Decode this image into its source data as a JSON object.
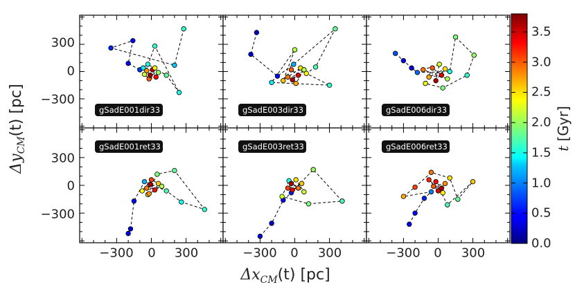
{
  "chart_data": {
    "type": "scatter",
    "xlabel_math": "Δx",
    "xlabel_sub": "CM",
    "xlabel_rest": "(t) [pc]",
    "ylabel_math": "Δy",
    "ylabel_sub": "CM",
    "ylabel_rest": "(t) [pc]",
    "xlim": [
      -620,
      620
    ],
    "ylim": [
      -620,
      620
    ],
    "x_ticks": [
      -300,
      0,
      300
    ],
    "x_tick_labels": [
      "−300",
      "0",
      "300"
    ],
    "y_ticks": [
      300,
      0,
      -300
    ],
    "y_tick_labels": [
      "300",
      "0",
      "−300"
    ],
    "colorbar": {
      "label_math": "t",
      "label_rest": " [Gyr]",
      "range": [
        0.0,
        3.8
      ],
      "ticks": [
        0.0,
        0.5,
        1.0,
        1.5,
        2.0,
        2.5,
        3.0,
        3.5
      ],
      "tick_labels": [
        "0.0",
        "0.5",
        "1.0",
        "1.5",
        "2.0",
        "2.5",
        "3.0",
        "3.5"
      ]
    },
    "panels": [
      {
        "label": "gSadE001dir33",
        "points": [
          [
            280,
            470,
            1.6
          ],
          [
            200,
            70,
            1.3
          ],
          [
            -350,
            260,
            0.6
          ],
          [
            -160,
            340,
            0.5
          ],
          [
            -200,
            90,
            0.4
          ],
          [
            -100,
            20,
            0.7
          ],
          [
            -30,
            80,
            1.5
          ],
          [
            130,
            -40,
            1.8
          ],
          [
            240,
            -230,
            1.5
          ],
          [
            30,
            280,
            1.6
          ],
          [
            -60,
            -30,
            2.2
          ],
          [
            -20,
            -80,
            3.0
          ],
          [
            40,
            -60,
            3.3
          ],
          [
            10,
            20,
            3.5
          ],
          [
            -40,
            10,
            2.8
          ],
          [
            30,
            40,
            2.4
          ],
          [
            60,
            -10,
            2.0
          ],
          [
            -10,
            -40,
            3.7
          ],
          [
            -70,
            40,
            1.4
          ]
        ]
      },
      {
        "label": "gSadE003dir33",
        "points": [
          [
            -330,
            430,
            0.3
          ],
          [
            -380,
            190,
            0.3
          ],
          [
            -150,
            -50,
            0.5
          ],
          [
            -10,
            80,
            1.2
          ],
          [
            350,
            470,
            1.8
          ],
          [
            180,
            50,
            1.7
          ],
          [
            100,
            -20,
            2.4
          ],
          [
            300,
            -150,
            1.6
          ],
          [
            -200,
            -120,
            1.4
          ],
          [
            0,
            240,
            2.1
          ],
          [
            -100,
            -100,
            2.6
          ],
          [
            -30,
            20,
            3.0
          ],
          [
            30,
            -40,
            3.4
          ],
          [
            -60,
            -60,
            2.9
          ],
          [
            50,
            40,
            2.5
          ],
          [
            -20,
            -90,
            3.6
          ],
          [
            80,
            20,
            2.1
          ],
          [
            10,
            -130,
            2.7
          ]
        ]
      },
      {
        "label": "gSadE006dir33",
        "points": [
          [
            -370,
            200,
            0.8
          ],
          [
            -300,
            120,
            0.5
          ],
          [
            -230,
            40,
            0.4
          ],
          [
            -180,
            -10,
            0.9
          ],
          [
            100,
            0,
            1.5
          ],
          [
            150,
            380,
            1.9
          ],
          [
            310,
            180,
            2.0
          ],
          [
            250,
            -40,
            1.6
          ],
          [
            40,
            -180,
            1.9
          ],
          [
            -110,
            -130,
            2.3
          ],
          [
            -50,
            40,
            3.0
          ],
          [
            30,
            -40,
            3.4
          ],
          [
            -80,
            -60,
            2.7
          ],
          [
            60,
            30,
            2.5
          ],
          [
            -20,
            -100,
            3.6
          ],
          [
            10,
            80,
            2.2
          ],
          [
            -130,
            20,
            2.9
          ],
          [
            80,
            -80,
            2.1
          ]
        ]
      },
      {
        "label": "gSadE001ret33",
        "points": [
          [
            -200,
            -520,
            0.4
          ],
          [
            -180,
            -470,
            0.3
          ],
          [
            -150,
            -170,
            0.5
          ],
          [
            -60,
            40,
            1.2
          ],
          [
            130,
            -60,
            1.7
          ],
          [
            260,
            -180,
            1.5
          ],
          [
            460,
            -260,
            1.6
          ],
          [
            200,
            160,
            1.8
          ],
          [
            50,
            120,
            1.9
          ],
          [
            -30,
            -100,
            2.2
          ],
          [
            30,
            -50,
            3.3
          ],
          [
            -10,
            10,
            3.6
          ],
          [
            -40,
            -30,
            2.9
          ],
          [
            60,
            20,
            2.6
          ],
          [
            0,
            60,
            3.1
          ],
          [
            -80,
            -60,
            2.4
          ],
          [
            90,
            -10,
            2.1
          ],
          [
            -20,
            -90,
            2.8
          ]
        ]
      },
      {
        "label": "gSadE003ret33",
        "points": [
          [
            -300,
            -550,
            0.4
          ],
          [
            -200,
            -410,
            0.3
          ],
          [
            -100,
            -160,
            0.5
          ],
          [
            -30,
            -80,
            0.6
          ],
          [
            160,
            170,
            2.0
          ],
          [
            410,
            -170,
            1.7
          ],
          [
            120,
            -200,
            1.9
          ],
          [
            -110,
            -120,
            2.2
          ],
          [
            -50,
            50,
            1.5
          ],
          [
            30,
            -30,
            2.9
          ],
          [
            -20,
            -50,
            3.4
          ],
          [
            60,
            20,
            2.6
          ],
          [
            -60,
            -30,
            3.1
          ],
          [
            10,
            60,
            2.5
          ],
          [
            80,
            -70,
            2.2
          ],
          [
            -30,
            20,
            3.6
          ]
        ]
      },
      {
        "label": "gSadE006ret33",
        "points": [
          [
            -250,
            -420,
            0.4
          ],
          [
            -200,
            -300,
            0.5
          ],
          [
            -120,
            -140,
            0.6
          ],
          [
            -60,
            -70,
            1.0
          ],
          [
            -300,
            -120,
            2.7
          ],
          [
            -200,
            -20,
            3.1
          ],
          [
            -60,
            140,
            2.9
          ],
          [
            100,
            80,
            2.5
          ],
          [
            170,
            -150,
            1.8
          ],
          [
            300,
            40,
            2.6
          ],
          [
            80,
            -210,
            1.7
          ],
          [
            -20,
            40,
            3.3
          ],
          [
            30,
            -30,
            3.6
          ],
          [
            -40,
            -10,
            3.0
          ],
          [
            60,
            20,
            2.8
          ],
          [
            0,
            -60,
            3.4
          ],
          [
            -80,
            60,
            3.2
          ],
          [
            40,
            -80,
            2.4
          ]
        ]
      }
    ]
  }
}
